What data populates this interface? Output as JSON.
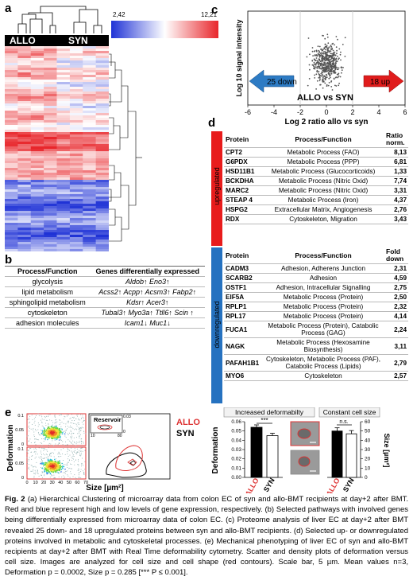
{
  "panels": {
    "a": "a",
    "b": "b",
    "c": "c",
    "d": "d",
    "e": "e"
  },
  "heatmap": {
    "group_left": "ALLO",
    "group_right": "SYN",
    "scale_min": "2,42",
    "scale_max": "12,21",
    "colors": {
      "high": "#e8262b",
      "low": "#1f32d6",
      "mid": "#ffffff"
    }
  },
  "pathways": {
    "col1": "Process/Function",
    "col2": "Genes differentially expressed",
    "rows": [
      {
        "process": "glycolysis",
        "genes": "Aldob↑ Eno3↑"
      },
      {
        "process": "lipid metabolism",
        "genes": "Acss2↑ Acpp↑ Acsm3↑ Fabp2↑"
      },
      {
        "process": "sphingolipid metabolism",
        "genes": "Kdsr↑ Acer3↑"
      },
      {
        "process": "cytoskeleton",
        "genes": "Tubal3↑ Myo3a↑ Ttll6↑ Scin ↑"
      },
      {
        "process": "adhesion molecules",
        "genes": "Icam1↓ Muc1↓"
      }
    ]
  },
  "volcano": {
    "ylabel": "Log 10 signal intensity",
    "xlabel": "Log 2 ratio allo vs syn",
    "xticks": [
      "-6",
      "-4",
      "-2",
      "0",
      "2",
      "4",
      "6"
    ],
    "down_label": "25 down",
    "up_label": "18 up",
    "comparison": "ALLO vs SYN"
  },
  "chart_data": [
    {
      "type": "scatter",
      "title": "",
      "xlabel": "Log 2 ratio allo vs syn",
      "ylabel": "Log 10 signal intensity",
      "xlim": [
        -6,
        6
      ],
      "annotations": [
        "25 down",
        "18 up",
        "ALLO vs SYN"
      ],
      "series": [
        {
          "name": "",
          "values": []
        }
      ]
    },
    {
      "type": "bar",
      "title": "",
      "categories": [
        "ALLO",
        "SYN"
      ],
      "ylabel": "Deformation",
      "ylim": [
        0,
        0.06
      ],
      "values": [
        0.054,
        0.045
      ],
      "significance": "***",
      "header": "Increased deformabilty"
    },
    {
      "type": "bar",
      "title": "",
      "categories": [
        "ALLO",
        "SYN"
      ],
      "ylabel": "Size [µm²]",
      "ylim": [
        0,
        60
      ],
      "values": [
        50,
        47
      ],
      "significance": "n.s.",
      "header": "Constant cell size"
    }
  ],
  "proteins": {
    "up_label": "upregulated",
    "down_label": "downregulated",
    "up_head": {
      "protein": "Protein",
      "process": "Process/Function",
      "ratio": "Ratio norm."
    },
    "down_head": {
      "protein": "Protein",
      "process": "Process/Function",
      "ratio": "Fold down"
    },
    "up": [
      {
        "p": "CPT2",
        "f": "Metabolic Process (FAO)",
        "r": "8,13"
      },
      {
        "p": "G6PDX",
        "f": "Metabolic Process (PPP)",
        "r": "6,81"
      },
      {
        "p": "HSD11B1",
        "f": "Metabolic Process (Glucocorticoids)",
        "r": "1,33"
      },
      {
        "p": "BCKDHA",
        "f": "Metabolic Process (Nitric Oxid)",
        "r": "7,74"
      },
      {
        "p": "MARC2",
        "f": "Metabolic Process (Nitric Oxid)",
        "r": "3,31"
      },
      {
        "p": "STEAP 4",
        "f": "Metabolic Process (Iron)",
        "r": "4,37"
      },
      {
        "p": "HSPG2",
        "f": "Extracellular Matrix, Angiogenesis",
        "r": "2,76"
      },
      {
        "p": "RDX",
        "f": "Cytoskeleton, Migration",
        "r": "3,43"
      }
    ],
    "down": [
      {
        "p": "CADM3",
        "f": "Adhesion, Adherens Junction",
        "r": "2,31"
      },
      {
        "p": "SCARB2",
        "f": "Adhesion",
        "r": "4,59"
      },
      {
        "p": "OSTF1",
        "f": "Adhesion, Intracellular Signalling",
        "r": "2,75"
      },
      {
        "p": "EIF5A",
        "f": "Metabolic Process (Protein)",
        "r": "2,50"
      },
      {
        "p": "RPLP1",
        "f": "Metabolic Process (Protein)",
        "r": "2,32"
      },
      {
        "p": "RPL17",
        "f": "Metabolic Process (Protein)",
        "r": "4,14"
      },
      {
        "p": "FUCA1",
        "f": "Metabolic Process (Protein), Catabolic Process (GAG)",
        "r": "2,24"
      },
      {
        "p": "NAGK",
        "f": "Metabolic Process (Hexosamine Biosynthesis)",
        "r": "3,11"
      },
      {
        "p": "PAFAH1B1",
        "f": "Cytoskeleton, Metabolic Process (PAF), Catabolic Process (Lipids)",
        "r": "2,79"
      },
      {
        "p": "MYO6",
        "f": "Cytoskeleton",
        "r": "2,57"
      }
    ]
  },
  "cyto": {
    "ylabel": "Deformation",
    "xlabel": "Size [µm²]",
    "xticks": [
      "0",
      "10",
      "20",
      "30",
      "40",
      "50",
      "60",
      "70"
    ],
    "yticks": [
      "0.1",
      "0.05",
      "0"
    ],
    "reservoir": "Reservoir",
    "res_x0": "10",
    "res_x1": "80",
    "res_y0": "0.03",
    "res_y1": "0",
    "legend_allo": "ALLO",
    "legend_syn": "SYN"
  },
  "bars": {
    "header_left": "Increased deformabilty",
    "header_right": "Constant cell size",
    "ylabel_left": "Deformation",
    "ylabel_right": "Size [µm²]",
    "yticks_left": [
      "0.06",
      "0.05",
      "0.04",
      "0.03",
      "0.02",
      "0.01",
      "0.00"
    ],
    "yticks_right": [
      "60",
      "50",
      "40",
      "30",
      "20",
      "10",
      "0"
    ],
    "sig_left": "***",
    "sig_right": "n.s.",
    "cat_allo": "ALLO",
    "cat_syn": "SYN"
  },
  "caption": {
    "title": "Fig. 2",
    "text": "(a) Hierarchical Clustering of microarray data from colon EC of syn and allo-BMT recipients at day+2 after BMT. Red and blue represent high and low levels of gene expression, respectively. (b) Selected pathways with involved genes being differentially expressed from microarray data of colon EC. (c) Proteome analysis of liver EC at day+2 after BMT revealed 25 down- and 18 upregulated proteins between syn and allo-BMT recipients. (d) Selected up- or downregulated proteins involved in metabolic and cytoskeletal processes. (e) Mechanical phenotyping of liver EC of syn and allo-BMT recipients at day+2 after BMT with Real Time deformability cytometry. Scatter and density plots of deformation versus cell size. Images are analyzed for cell size and cell shape (red contours). Scale bar, 5 µm. Mean values n=3, Deformation p = 0.0002, Size p = 0.285 [*** P ≤ 0.001]."
  }
}
